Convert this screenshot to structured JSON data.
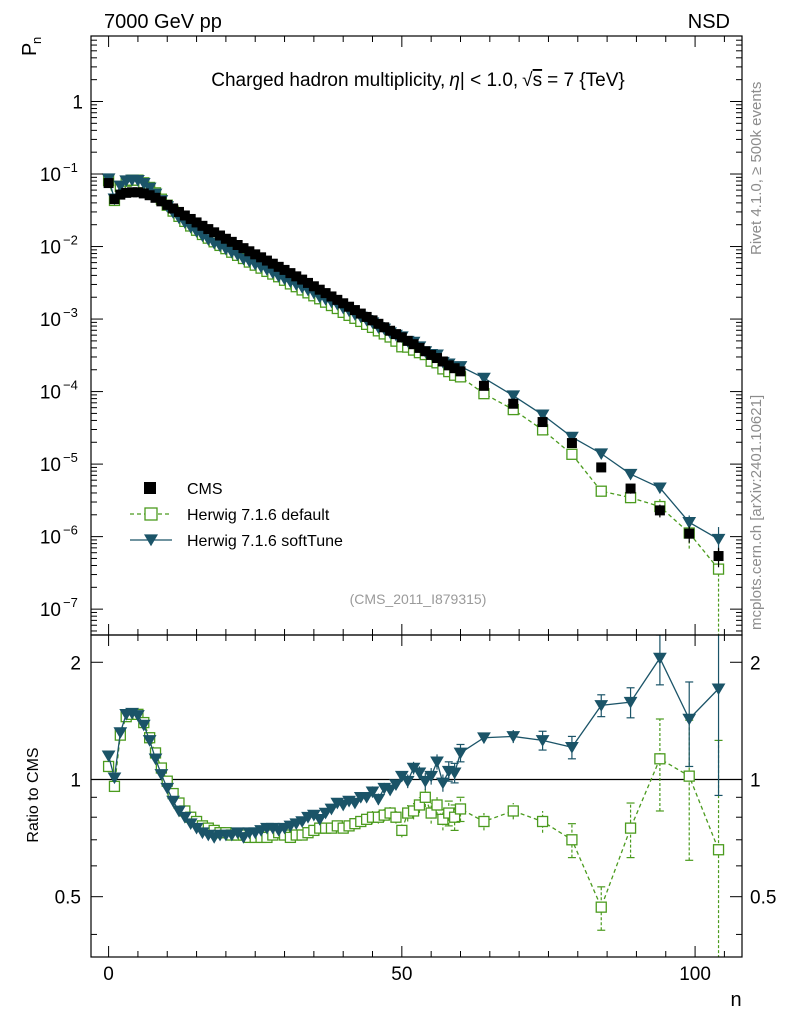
{
  "header": {
    "left": "7000 GeV pp",
    "right": "NSD"
  },
  "side_labels": {
    "rivet": "Rivet 4.1.0, ≥ 500k events",
    "mcplots": "mcplots.cern.ch [arXiv:2401.10621]"
  },
  "chart_data": {
    "type": "scatter",
    "title": "Charged hadron multiplicity, |η| < 1.0, √s = 7 {TeV}",
    "title_parts": {
      "pre": "Charged hadron multiplicity,",
      "eta": "η",
      "cut": "| < 1.0,",
      "sqrt_s": "s",
      "post": "= 7 {TeV}"
    },
    "watermark": "(CMS_2011_I879315)",
    "xlabel": "n",
    "ylabel": "P",
    "ylabel_sub": "n",
    "ratio_ylabel": "Ratio to CMS",
    "xlim": [
      -3,
      108
    ],
    "ylim_main": [
      4.4e-08,
      8
    ],
    "ylim_ratio": [
      0.35,
      2.35
    ],
    "x_ticks": [
      {
        "value": 0,
        "label": "0"
      },
      {
        "value": 50,
        "label": "50"
      },
      {
        "value": 100,
        "label": "100"
      }
    ],
    "y_ticks_main": [
      {
        "value": 1,
        "label": "1"
      },
      {
        "value": 0.1,
        "label": "10",
        "exp": "−1"
      },
      {
        "value": 0.01,
        "label": "10",
        "exp": "−2"
      },
      {
        "value": 0.001,
        "label": "10",
        "exp": "−3"
      },
      {
        "value": 0.0001,
        "label": "10",
        "exp": "−4"
      },
      {
        "value": 1e-05,
        "label": "10",
        "exp": "−5"
      },
      {
        "value": 1e-06,
        "label": "10",
        "exp": "−6"
      },
      {
        "value": 1e-07,
        "label": "10",
        "exp": "−7"
      }
    ],
    "y_ticks_ratio": [
      {
        "value": 0.5,
        "label": "0.5"
      },
      {
        "value": 1,
        "label": "1"
      },
      {
        "value": 2,
        "label": "2"
      }
    ],
    "legend": {
      "position": "bottom-left",
      "entries": [
        {
          "label": "CMS",
          "marker": "square-filled",
          "color": "#000000"
        },
        {
          "label": "Herwig 7.1.6 default",
          "marker": "square-open",
          "line": "dashed",
          "color": "#4b9b1e"
        },
        {
          "label": "Herwig 7.1.6 softTune",
          "marker": "triangle-down",
          "line": "solid",
          "color": "#1b5468"
        }
      ]
    },
    "cms": {
      "name": "CMS",
      "color": "#000000",
      "x": [
        0,
        1,
        2,
        3,
        4,
        5,
        6,
        7,
        8,
        9,
        10,
        11,
        12,
        13,
        14,
        15,
        16,
        17,
        18,
        19,
        20,
        21,
        22,
        23,
        24,
        25,
        26,
        27,
        28,
        29,
        30,
        31,
        32,
        33,
        34,
        35,
        36,
        37,
        38,
        39,
        40,
        41,
        42,
        43,
        44,
        45,
        46,
        47,
        48,
        49,
        50,
        51,
        52,
        53,
        54,
        55,
        56,
        57,
        58,
        59,
        60,
        64,
        69,
        74,
        79,
        84,
        89,
        94,
        99,
        104
      ],
      "y": [
        0.075,
        0.045,
        0.052,
        0.055,
        0.056,
        0.056,
        0.054,
        0.051,
        0.047,
        0.042,
        0.0375,
        0.0335,
        0.03,
        0.0268,
        0.024,
        0.0215,
        0.0193,
        0.0174,
        0.0157,
        0.0142,
        0.0128,
        0.0116,
        0.0105,
        0.0095,
        0.0086,
        0.0078,
        0.0071,
        0.0064,
        0.0058,
        0.00525,
        0.00476,
        0.0043,
        0.00388,
        0.0035,
        0.00315,
        0.00283,
        0.00254,
        0.00228,
        0.00205,
        0.00184,
        0.00165,
        0.00148,
        0.00133,
        0.00119,
        0.00107,
        0.00096,
        0.00086,
        0.00077,
        0.00069,
        0.00062,
        0.00056,
        0.0005,
        0.00045,
        0.0004,
        0.00036,
        0.00032,
        0.00029,
        0.00026,
        0.00023,
        0.00021,
        0.00019,
        0.00012,
        6.8e-05,
        3.8e-05,
        1.95e-05,
        9e-06,
        4.6e-06,
        2.3e-06,
        1.1e-06,
        5.4e-07
      ],
      "err_frac": [
        0.1,
        0.1,
        0.1,
        0.1,
        0.1,
        0.1,
        0.1,
        0.1,
        0.1,
        0.1,
        0.1,
        0.1,
        0.1,
        0.1,
        0.1,
        0.1,
        0.1,
        0.1,
        0.1,
        0.1,
        0.1,
        0.1,
        0.1,
        0.1,
        0.1,
        0.1,
        0.1,
        0.1,
        0.1,
        0.1,
        0.1,
        0.1,
        0.1,
        0.1,
        0.1,
        0.1,
        0.1,
        0.1,
        0.1,
        0.1,
        0.1,
        0.1,
        0.1,
        0.1,
        0.1,
        0.1,
        0.1,
        0.1,
        0.1,
        0.1,
        0.1,
        0.1,
        0.1,
        0.1,
        0.1,
        0.1,
        0.1,
        0.1,
        0.1,
        0.1,
        0.1,
        0.1,
        0.1,
        0.1,
        0.1,
        0.1,
        0.15,
        0.2,
        0.25,
        0.3
      ]
    },
    "series": [
      {
        "name": "Herwig 7.1.6 default",
        "color": "#4b9b1e",
        "line": "dashed",
        "marker": "square-open",
        "ratio": [
          1.08,
          0.96,
          1.3,
          1.45,
          1.47,
          1.47,
          1.4,
          1.28,
          1.17,
          1.07,
          0.99,
          0.92,
          0.87,
          0.83,
          0.8,
          0.78,
          0.76,
          0.75,
          0.74,
          0.73,
          0.73,
          0.72,
          0.72,
          0.72,
          0.71,
          0.71,
          0.71,
          0.71,
          0.72,
          0.73,
          0.72,
          0.71,
          0.72,
          0.72,
          0.73,
          0.74,
          0.75,
          0.75,
          0.75,
          0.76,
          0.75,
          0.76,
          0.77,
          0.78,
          0.79,
          0.8,
          0.8,
          0.81,
          0.82,
          0.8,
          0.74,
          0.82,
          0.83,
          0.86,
          0.9,
          0.82,
          0.86,
          0.79,
          0.82,
          0.8,
          0.84,
          0.78,
          0.83,
          0.78,
          0.7,
          0.47,
          0.75,
          1.13,
          1.02,
          0.66
        ],
        "ratio_err": [
          0.01,
          0.01,
          0.01,
          0.01,
          0.01,
          0.01,
          0.01,
          0.01,
          0.01,
          0.01,
          0.01,
          0.01,
          0.01,
          0.01,
          0.01,
          0.01,
          0.01,
          0.01,
          0.01,
          0.01,
          0.01,
          0.01,
          0.01,
          0.01,
          0.01,
          0.01,
          0.01,
          0.01,
          0.01,
          0.01,
          0.01,
          0.01,
          0.01,
          0.01,
          0.01,
          0.01,
          0.01,
          0.01,
          0.01,
          0.02,
          0.02,
          0.02,
          0.02,
          0.02,
          0.02,
          0.03,
          0.03,
          0.03,
          0.03,
          0.03,
          0.03,
          0.04,
          0.04,
          0.04,
          0.05,
          0.05,
          0.05,
          0.05,
          0.06,
          0.06,
          0.06,
          0.04,
          0.04,
          0.05,
          0.07,
          0.06,
          0.12,
          0.3,
          0.4,
          0.6
        ]
      },
      {
        "name": "Herwig 7.1.6 softTune",
        "color": "#1b5468",
        "line": "solid",
        "marker": "triangle-down",
        "ratio": [
          1.15,
          1.01,
          1.32,
          1.47,
          1.48,
          1.46,
          1.38,
          1.26,
          1.13,
          1.03,
          0.95,
          0.88,
          0.83,
          0.8,
          0.77,
          0.75,
          0.73,
          0.72,
          0.71,
          0.72,
          0.72,
          0.72,
          0.73,
          0.71,
          0.73,
          0.73,
          0.74,
          0.75,
          0.75,
          0.74,
          0.75,
          0.76,
          0.77,
          0.78,
          0.8,
          0.81,
          0.79,
          0.82,
          0.84,
          0.87,
          0.86,
          0.88,
          0.87,
          0.9,
          0.9,
          0.93,
          0.89,
          0.95,
          0.94,
          0.97,
          1.02,
          0.99,
          1.07,
          1.04,
          0.99,
          1.02,
          1.11,
          0.98,
          1.05,
          1.04,
          1.17,
          1.28,
          1.29,
          1.26,
          1.21,
          1.55,
          1.58,
          2.05,
          1.43,
          1.71
        ],
        "ratio_err": [
          0.01,
          0.01,
          0.01,
          0.01,
          0.01,
          0.01,
          0.01,
          0.01,
          0.01,
          0.01,
          0.01,
          0.01,
          0.01,
          0.01,
          0.01,
          0.01,
          0.01,
          0.01,
          0.01,
          0.01,
          0.01,
          0.01,
          0.01,
          0.01,
          0.01,
          0.01,
          0.01,
          0.01,
          0.01,
          0.01,
          0.01,
          0.01,
          0.01,
          0.01,
          0.01,
          0.01,
          0.01,
          0.01,
          0.01,
          0.02,
          0.02,
          0.02,
          0.02,
          0.02,
          0.02,
          0.03,
          0.03,
          0.03,
          0.03,
          0.03,
          0.03,
          0.04,
          0.04,
          0.04,
          0.05,
          0.05,
          0.05,
          0.05,
          0.06,
          0.06,
          0.06,
          0.04,
          0.05,
          0.07,
          0.08,
          0.1,
          0.14,
          0.3,
          0.35,
          0.8
        ]
      }
    ]
  }
}
